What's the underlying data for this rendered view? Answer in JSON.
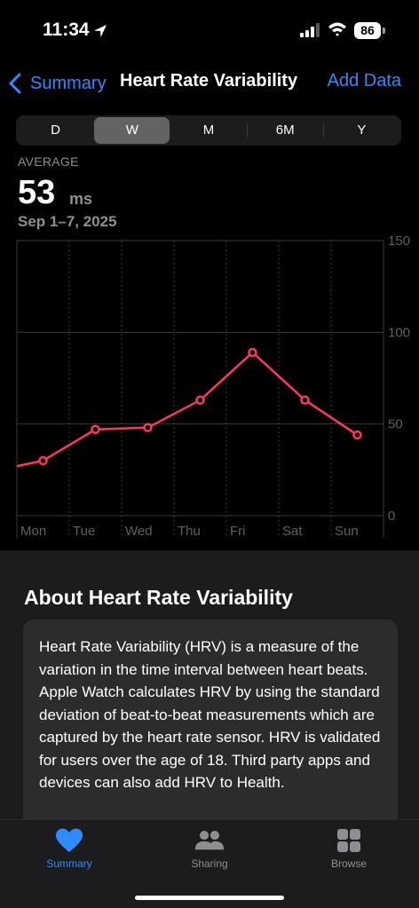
{
  "status_bar": {
    "time": "11:34",
    "battery": "86"
  },
  "nav": {
    "back_label": "Summary",
    "title": "Heart Rate Variability",
    "action_label": "Add Data"
  },
  "segments": [
    {
      "label": "D",
      "active": false
    },
    {
      "label": "W",
      "active": true
    },
    {
      "label": "M",
      "active": false
    },
    {
      "label": "6M",
      "active": false
    },
    {
      "label": "Y",
      "active": false
    }
  ],
  "summary": {
    "label": "AVERAGE",
    "value": "53",
    "unit": "ms",
    "date_range": "Sep 1–7, 2025"
  },
  "chart_data": {
    "type": "line",
    "categories": [
      "Mon",
      "Tue",
      "Wed",
      "Thu",
      "Fri",
      "Sat",
      "Sun"
    ],
    "series": [
      {
        "values": [
          30,
          47,
          48,
          63,
          89,
          63,
          44
        ]
      }
    ],
    "leading_value": 27,
    "y_ticks": [
      "150",
      "100",
      "50",
      "0"
    ],
    "ylim": [
      0,
      150
    ],
    "line_color": "#ff375f"
  },
  "about": {
    "title": "About Heart Rate Variability",
    "body": "Heart Rate Variability (HRV) is a measure of the variation in the time interval between heart beats. Apple Watch calculates HRV by using the standard deviation of beat-to-beat measurements which are captured by the heart rate sensor. HRV is validated for users over the age of 18. Third party apps and devices can also add HRV to Health."
  },
  "tabs": [
    {
      "label": "Summary",
      "icon": "heart-icon",
      "active": true
    },
    {
      "label": "Sharing",
      "icon": "people-icon",
      "active": false
    },
    {
      "label": "Browse",
      "icon": "grid-icon",
      "active": false
    }
  ],
  "colors": {
    "accent": "#2f8cff",
    "line": "#ff375f"
  }
}
